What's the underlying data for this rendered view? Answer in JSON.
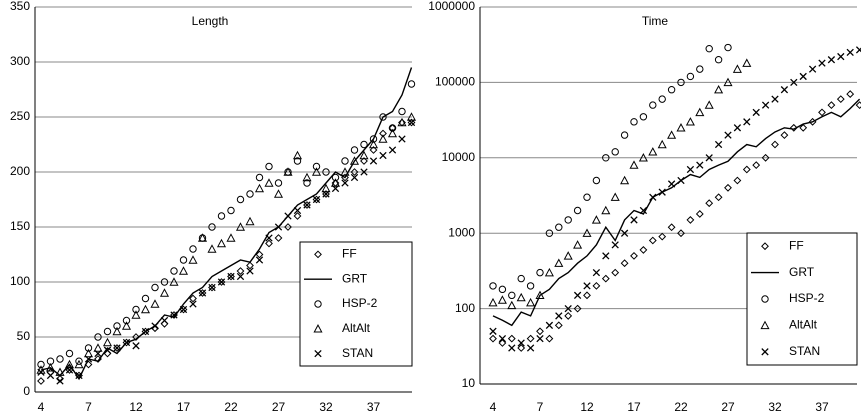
{
  "chart_data": [
    {
      "type": "line",
      "title": "Length",
      "categories": [
        "4",
        null,
        null,
        null,
        null,
        "7",
        null,
        null,
        null,
        null,
        "12",
        null,
        null,
        null,
        null,
        "17",
        null,
        null,
        null,
        null,
        "22",
        null,
        null,
        null,
        null,
        "27",
        null,
        null,
        null,
        null,
        "32",
        null,
        null,
        null,
        null,
        "37",
        null,
        null,
        null,
        null
      ],
      "ylim": [
        0,
        350
      ],
      "yticks": [
        0,
        50,
        100,
        150,
        200,
        250,
        300,
        350
      ],
      "grid": true,
      "log_scale": false,
      "legend": "lower right",
      "series": [
        {
          "name": "FF",
          "marker": "diamond",
          "color": "#000000",
          "values": [
            10,
            18,
            12,
            20,
            15,
            25,
            30,
            35,
            40,
            45,
            50,
            55,
            58,
            62,
            70,
            75,
            85,
            90,
            95,
            100,
            105,
            110,
            115,
            125,
            135,
            140,
            150,
            160,
            170,
            175,
            180,
            190,
            195,
            200,
            210,
            220,
            235,
            240,
            245,
            245
          ]
        },
        {
          "name": "GRT",
          "marker": "line",
          "color": "#000000",
          "values": [
            20,
            22,
            15,
            25,
            12,
            30,
            28,
            40,
            35,
            45,
            48,
            55,
            60,
            70,
            68,
            80,
            90,
            95,
            105,
            110,
            115,
            120,
            118,
            130,
            145,
            150,
            160,
            170,
            175,
            180,
            190,
            200,
            195,
            210,
            220,
            230,
            250,
            255,
            270,
            295
          ]
        },
        {
          "name": "HSP-2",
          "marker": "circle",
          "color": "#000000",
          "values": [
            25,
            28,
            30,
            35,
            28,
            40,
            50,
            55,
            60,
            65,
            75,
            85,
            95,
            100,
            110,
            120,
            130,
            140,
            150,
            160,
            165,
            175,
            180,
            195,
            205,
            190,
            200,
            210,
            190,
            205,
            200,
            195,
            210,
            220,
            225,
            230,
            250,
            240,
            255,
            280
          ]
        },
        {
          "name": "AltAlt",
          "marker": "triangle",
          "color": "#000000",
          "values": [
            20,
            22,
            18,
            25,
            25,
            35,
            40,
            45,
            55,
            60,
            70,
            75,
            80,
            90,
            100,
            110,
            120,
            140,
            130,
            135,
            140,
            150,
            155,
            185,
            190,
            180,
            200,
            215,
            195,
            200,
            185,
            190,
            200,
            210,
            215,
            225,
            230,
            235,
            245,
            250
          ]
        },
        {
          "name": "STAN",
          "marker": "cross",
          "color": "#000000",
          "values": [
            18,
            15,
            10,
            20,
            15,
            30,
            35,
            38,
            40,
            45,
            42,
            55,
            60,
            65,
            70,
            75,
            80,
            90,
            95,
            100,
            105,
            105,
            110,
            120,
            140,
            150,
            160,
            165,
            170,
            175,
            180,
            185,
            190,
            195,
            200,
            210,
            215,
            220,
            230,
            245
          ]
        }
      ]
    },
    {
      "type": "line",
      "title": "Time",
      "categories": [
        "4",
        null,
        null,
        null,
        null,
        "7",
        null,
        null,
        null,
        null,
        "12",
        null,
        null,
        null,
        null,
        "17",
        null,
        null,
        null,
        null,
        "22",
        null,
        null,
        null,
        null,
        "27",
        null,
        null,
        null,
        null,
        "32",
        null,
        null,
        null,
        null,
        "37",
        null,
        null,
        null,
        null
      ],
      "ylim": [
        10,
        1000000
      ],
      "yticks": [
        10,
        100,
        1000,
        10000,
        100000,
        1000000
      ],
      "grid": true,
      "log_scale": true,
      "legend": "lower right",
      "series": [
        {
          "name": "FF",
          "marker": "diamond",
          "color": "#000000",
          "values": [
            40,
            35,
            40,
            30,
            40,
            50,
            40,
            60,
            80,
            100,
            150,
            200,
            250,
            300,
            400,
            500,
            600,
            800,
            900,
            1200,
            1000,
            1500,
            1800,
            2500,
            3000,
            4000,
            5000,
            7000,
            8000,
            10000,
            15000,
            20000,
            25000,
            25000,
            30000,
            40000,
            50000,
            60000,
            70000,
            50000
          ]
        },
        {
          "name": "GRT",
          "marker": "line",
          "color": "#000000",
          "values": [
            80,
            70,
            60,
            90,
            80,
            150,
            180,
            250,
            300,
            400,
            500,
            700,
            1200,
            800,
            1500,
            2000,
            1800,
            3000,
            3500,
            4000,
            5000,
            6000,
            5500,
            7000,
            8000,
            9000,
            12000,
            15000,
            14000,
            18000,
            22000,
            25000,
            24000,
            28000,
            30000,
            35000,
            40000,
            35000,
            45000,
            60000
          ]
        },
        {
          "name": "HSP-2",
          "marker": "circle",
          "color": "#000000",
          "values": [
            200,
            180,
            150,
            250,
            200,
            300,
            1000,
            1200,
            1500,
            2000,
            3000,
            5000,
            10000,
            12000,
            20000,
            30000,
            35000,
            50000,
            60000,
            80000,
            100000,
            120000,
            150000,
            280000,
            200000,
            290000,
            null,
            null,
            null,
            null,
            null,
            null,
            null,
            null,
            null,
            null,
            null,
            null,
            null,
            null
          ]
        },
        {
          "name": "AltAlt",
          "marker": "triangle",
          "color": "#000000",
          "values": [
            120,
            130,
            110,
            140,
            120,
            150,
            300,
            400,
            500,
            700,
            1000,
            1500,
            2000,
            3000,
            5000,
            8000,
            10000,
            12000,
            15000,
            20000,
            25000,
            30000,
            40000,
            50000,
            80000,
            100000,
            150000,
            180000,
            null,
            null,
            null,
            null,
            null,
            null,
            null,
            null,
            null,
            null,
            null,
            null
          ]
        },
        {
          "name": "STAN",
          "marker": "cross",
          "color": "#000000",
          "values": [
            50,
            40,
            30,
            35,
            30,
            40,
            60,
            80,
            100,
            150,
            200,
            300,
            500,
            700,
            1000,
            1500,
            2000,
            3000,
            3500,
            4500,
            5000,
            7000,
            8000,
            10000,
            15000,
            20000,
            25000,
            30000,
            40000,
            50000,
            60000,
            80000,
            100000,
            120000,
            150000,
            180000,
            200000,
            220000,
            250000,
            270000
          ]
        }
      ]
    }
  ]
}
